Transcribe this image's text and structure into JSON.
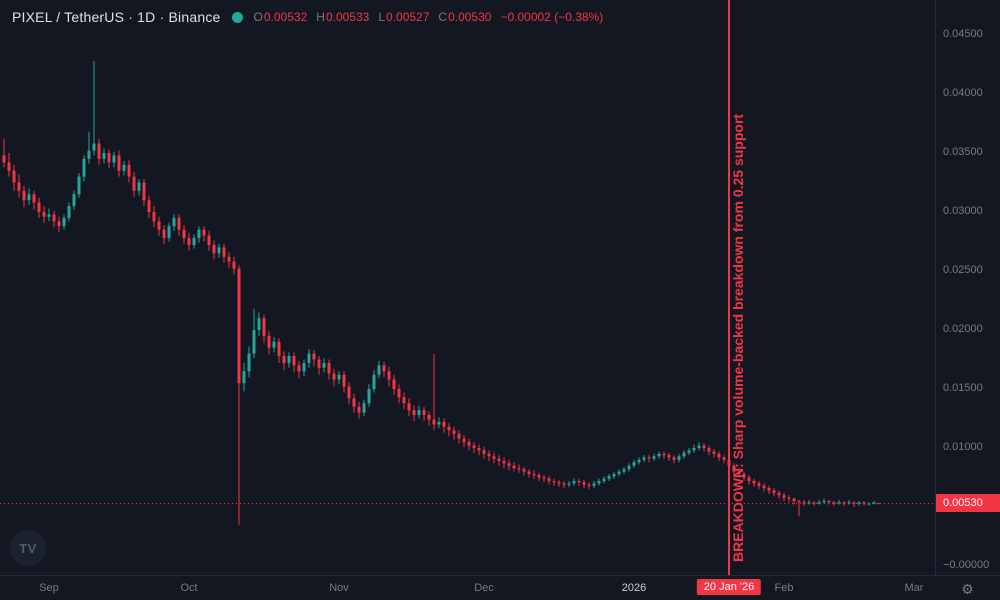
{
  "header": {
    "symbol_title": "PIXEL / TetherUS · 1D · Binance",
    "ohlc": {
      "o_label": "O",
      "o": "0.00532",
      "h_label": "H",
      "h": "0.00533",
      "l_label": "L",
      "l": "0.00527",
      "c_label": "C",
      "c": "0.00530",
      "change": "−0.00002 (−0.38%)"
    }
  },
  "colors": {
    "up": "#26a69a",
    "down": "#f23645",
    "axis_text": "#787b86",
    "background": "#121722",
    "border": "#232936",
    "title_text": "#dde1e8",
    "tag_bg": "#f23645"
  },
  "icons": {
    "gear": "⚙"
  },
  "watermark": "TV",
  "chart_data": {
    "type": "candlestick",
    "symbol": "PIXEL/TetherUS",
    "interval": "1D",
    "exchange": "Binance",
    "ylim": [
      0,
      0.0475
    ],
    "grid": "off",
    "current_price": 0.0053,
    "current_price_label": "0.00530",
    "zero_tick": {
      "text": "−0.00000",
      "price": 0
    },
    "price_ticks": [
      {
        "text": "0.04500",
        "price": 0.045
      },
      {
        "text": "0.04000",
        "price": 0.04
      },
      {
        "text": "0.03500",
        "price": 0.035
      },
      {
        "text": "0.03000",
        "price": 0.03
      },
      {
        "text": "0.02500",
        "price": 0.025
      },
      {
        "text": "0.02000",
        "price": 0.02
      },
      {
        "text": "0.01500",
        "price": 0.015
      },
      {
        "text": "0.01000",
        "price": 0.01
      }
    ],
    "time_ticks": [
      {
        "text": "Sep",
        "i": 9,
        "strong": false
      },
      {
        "text": "Oct",
        "i": 37,
        "strong": false
      },
      {
        "text": "Nov",
        "i": 67,
        "strong": false
      },
      {
        "text": "Dec",
        "i": 96,
        "strong": false
      },
      {
        "text": "2026",
        "i": 126,
        "strong": true
      },
      {
        "text": "Feb",
        "i": 156,
        "strong": false
      },
      {
        "text": "Mar",
        "i": 182,
        "strong": false
      }
    ],
    "event_line": {
      "index": 145,
      "label": "20 Jan '26",
      "annotation": "BREAKDOWN: Sharp volume-backed breakdown from 0.25 support"
    },
    "candles": [
      [
        0.0348,
        0.0362,
        0.0338,
        0.0342
      ],
      [
        0.0342,
        0.035,
        0.033,
        0.0335
      ],
      [
        0.0335,
        0.034,
        0.0318,
        0.0325
      ],
      [
        0.0325,
        0.0332,
        0.0312,
        0.0318
      ],
      [
        0.0318,
        0.0322,
        0.0304,
        0.031
      ],
      [
        0.031,
        0.032,
        0.0306,
        0.0315
      ],
      [
        0.0315,
        0.0318,
        0.0302,
        0.0308
      ],
      [
        0.0308,
        0.0312,
        0.0295,
        0.03
      ],
      [
        0.03,
        0.0305,
        0.0291,
        0.0296
      ],
      [
        0.0296,
        0.0303,
        0.0292,
        0.0298
      ],
      [
        0.0298,
        0.0301,
        0.0287,
        0.0292
      ],
      [
        0.0292,
        0.0296,
        0.0283,
        0.0288
      ],
      [
        0.0288,
        0.0298,
        0.0285,
        0.0295
      ],
      [
        0.0295,
        0.0308,
        0.0292,
        0.0305
      ],
      [
        0.0305,
        0.0318,
        0.0302,
        0.0315
      ],
      [
        0.0315,
        0.0333,
        0.0312,
        0.033
      ],
      [
        0.033,
        0.0348,
        0.0326,
        0.0345
      ],
      [
        0.0345,
        0.0368,
        0.0341,
        0.0352
      ],
      [
        0.0352,
        0.0428,
        0.0348,
        0.0358
      ],
      [
        0.0358,
        0.0362,
        0.034,
        0.0345
      ],
      [
        0.0345,
        0.0354,
        0.0341,
        0.035
      ],
      [
        0.035,
        0.0353,
        0.0337,
        0.0342
      ],
      [
        0.0342,
        0.0351,
        0.0338,
        0.0348
      ],
      [
        0.0348,
        0.0352,
        0.033,
        0.0335
      ],
      [
        0.0335,
        0.0343,
        0.0331,
        0.034
      ],
      [
        0.034,
        0.0344,
        0.0325,
        0.033
      ],
      [
        0.033,
        0.0334,
        0.0313,
        0.0318
      ],
      [
        0.0318,
        0.0328,
        0.0314,
        0.0325
      ],
      [
        0.0325,
        0.0328,
        0.0305,
        0.031
      ],
      [
        0.031,
        0.0314,
        0.0295,
        0.03
      ],
      [
        0.03,
        0.0305,
        0.0287,
        0.0292
      ],
      [
        0.0292,
        0.0296,
        0.028,
        0.0285
      ],
      [
        0.0285,
        0.0289,
        0.0273,
        0.0278
      ],
      [
        0.0278,
        0.0291,
        0.0275,
        0.0288
      ],
      [
        0.0288,
        0.0298,
        0.0284,
        0.0295
      ],
      [
        0.0295,
        0.0298,
        0.028,
        0.0285
      ],
      [
        0.0285,
        0.0289,
        0.0273,
        0.0278
      ],
      [
        0.0278,
        0.0282,
        0.0267,
        0.0272
      ],
      [
        0.0272,
        0.0281,
        0.0269,
        0.0278
      ],
      [
        0.0278,
        0.0288,
        0.0274,
        0.0285
      ],
      [
        0.0285,
        0.0288,
        0.0275,
        0.028
      ],
      [
        0.028,
        0.0284,
        0.0267,
        0.0272
      ],
      [
        0.0272,
        0.0276,
        0.026,
        0.0265
      ],
      [
        0.0265,
        0.0273,
        0.0261,
        0.027
      ],
      [
        0.027,
        0.0273,
        0.0257,
        0.0262
      ],
      [
        0.0262,
        0.0266,
        0.0253,
        0.0258
      ],
      [
        0.0258,
        0.0262,
        0.0247,
        0.0252
      ],
      [
        0.0252,
        0.0255,
        0.0035,
        0.0155
      ],
      [
        0.0155,
        0.0172,
        0.0148,
        0.0165
      ],
      [
        0.0165,
        0.0186,
        0.016,
        0.018
      ],
      [
        0.018,
        0.0218,
        0.0176,
        0.02
      ],
      [
        0.02,
        0.0215,
        0.0195,
        0.021
      ],
      [
        0.021,
        0.0213,
        0.0189,
        0.0195
      ],
      [
        0.0195,
        0.0199,
        0.0179,
        0.0185
      ],
      [
        0.0185,
        0.0194,
        0.0181,
        0.019
      ],
      [
        0.019,
        0.0193,
        0.0172,
        0.0178
      ],
      [
        0.0178,
        0.0182,
        0.0166,
        0.0172
      ],
      [
        0.0172,
        0.0181,
        0.0168,
        0.0178
      ],
      [
        0.0178,
        0.0181,
        0.0164,
        0.017
      ],
      [
        0.017,
        0.0174,
        0.0159,
        0.0165
      ],
      [
        0.0165,
        0.0175,
        0.0161,
        0.0172
      ],
      [
        0.0172,
        0.0184,
        0.0168,
        0.018
      ],
      [
        0.018,
        0.0183,
        0.0169,
        0.0175
      ],
      [
        0.0175,
        0.0178,
        0.0162,
        0.0168
      ],
      [
        0.0168,
        0.0176,
        0.0164,
        0.0172
      ],
      [
        0.0172,
        0.0175,
        0.0158,
        0.0163
      ],
      [
        0.0163,
        0.0167,
        0.0152,
        0.0158
      ],
      [
        0.0158,
        0.0165,
        0.0154,
        0.0162
      ],
      [
        0.0162,
        0.0165,
        0.0147,
        0.0152
      ],
      [
        0.0152,
        0.0156,
        0.0137,
        0.0142
      ],
      [
        0.0142,
        0.0146,
        0.013,
        0.0135
      ],
      [
        0.0135,
        0.0139,
        0.0125,
        0.013
      ],
      [
        0.013,
        0.0141,
        0.0127,
        0.0138
      ],
      [
        0.0138,
        0.0154,
        0.0135,
        0.015
      ],
      [
        0.015,
        0.0166,
        0.0147,
        0.0162
      ],
      [
        0.0162,
        0.0174,
        0.0159,
        0.017
      ],
      [
        0.017,
        0.0173,
        0.016,
        0.0165
      ],
      [
        0.0165,
        0.0169,
        0.0152,
        0.0158
      ],
      [
        0.0158,
        0.0162,
        0.0145,
        0.015
      ],
      [
        0.015,
        0.0154,
        0.0138,
        0.0143
      ],
      [
        0.0143,
        0.0147,
        0.0133,
        0.0138
      ],
      [
        0.0138,
        0.0142,
        0.0127,
        0.0132
      ],
      [
        0.0132,
        0.0136,
        0.0123,
        0.0128
      ],
      [
        0.0128,
        0.0136,
        0.0125,
        0.0132
      ],
      [
        0.0132,
        0.0135,
        0.0123,
        0.0128
      ],
      [
        0.0128,
        0.0131,
        0.0119,
        0.0124
      ],
      [
        0.0124,
        0.018,
        0.0115,
        0.012
      ],
      [
        0.012,
        0.0126,
        0.0117,
        0.0122
      ],
      [
        0.0122,
        0.0125,
        0.0113,
        0.0118
      ],
      [
        0.0118,
        0.0121,
        0.011,
        0.0115
      ],
      [
        0.0115,
        0.0118,
        0.0107,
        0.0112
      ],
      [
        0.0112,
        0.0115,
        0.0104,
        0.0108
      ],
      [
        0.0108,
        0.0111,
        0.0101,
        0.0105
      ],
      [
        0.0105,
        0.0108,
        0.0098,
        0.0102
      ],
      [
        0.0102,
        0.0105,
        0.0096,
        0.01
      ],
      [
        0.01,
        0.0103,
        0.0094,
        0.0098
      ],
      [
        0.0098,
        0.0101,
        0.0091,
        0.0095
      ],
      [
        0.0095,
        0.0098,
        0.0089,
        0.0093
      ],
      [
        0.0093,
        0.0096,
        0.0087,
        0.0091
      ],
      [
        0.0091,
        0.0094,
        0.0085,
        0.0089
      ],
      [
        0.0089,
        0.0092,
        0.0083,
        0.0087
      ],
      [
        0.0087,
        0.009,
        0.0081,
        0.0085
      ],
      [
        0.0085,
        0.0088,
        0.008,
        0.0083
      ],
      [
        0.0083,
        0.0086,
        0.0079,
        0.0082
      ],
      [
        0.0082,
        0.0084,
        0.0077,
        0.008
      ],
      [
        0.008,
        0.0082,
        0.0075,
        0.0078
      ],
      [
        0.0078,
        0.0081,
        0.0074,
        0.0077
      ],
      [
        0.0077,
        0.0079,
        0.0072,
        0.0075
      ],
      [
        0.0075,
        0.0077,
        0.0071,
        0.0074
      ],
      [
        0.0074,
        0.0076,
        0.0069,
        0.0072
      ],
      [
        0.0072,
        0.0074,
        0.0068,
        0.0071
      ],
      [
        0.0071,
        0.0073,
        0.0067,
        0.007
      ],
      [
        0.007,
        0.0072,
        0.0066,
        0.0069
      ],
      [
        0.0069,
        0.0072,
        0.0067,
        0.007
      ],
      [
        0.007,
        0.0074,
        0.0068,
        0.0072
      ],
      [
        0.0072,
        0.0074,
        0.0068,
        0.0071
      ],
      [
        0.0071,
        0.0073,
        0.0066,
        0.0069
      ],
      [
        0.0069,
        0.0071,
        0.0065,
        0.0068
      ],
      [
        0.0068,
        0.0072,
        0.0066,
        0.007
      ],
      [
        0.007,
        0.0074,
        0.0068,
        0.0072
      ],
      [
        0.0072,
        0.0076,
        0.007,
        0.0074
      ],
      [
        0.0074,
        0.0078,
        0.0072,
        0.0076
      ],
      [
        0.0076,
        0.008,
        0.0074,
        0.0078
      ],
      [
        0.0078,
        0.0082,
        0.0076,
        0.008
      ],
      [
        0.008,
        0.0084,
        0.0078,
        0.0082
      ],
      [
        0.0082,
        0.0087,
        0.008,
        0.0085
      ],
      [
        0.0085,
        0.009,
        0.0083,
        0.0088
      ],
      [
        0.0088,
        0.0092,
        0.0086,
        0.009
      ],
      [
        0.009,
        0.0094,
        0.0088,
        0.0092
      ],
      [
        0.0092,
        0.0094,
        0.0088,
        0.0091
      ],
      [
        0.0091,
        0.0095,
        0.0089,
        0.0093
      ],
      [
        0.0093,
        0.0097,
        0.0091,
        0.0095
      ],
      [
        0.0095,
        0.0097,
        0.0091,
        0.0094
      ],
      [
        0.0094,
        0.0096,
        0.0089,
        0.0092
      ],
      [
        0.0092,
        0.0094,
        0.0087,
        0.009
      ],
      [
        0.009,
        0.0095,
        0.0088,
        0.0093
      ],
      [
        0.0093,
        0.0098,
        0.0091,
        0.0096
      ],
      [
        0.0096,
        0.01,
        0.0094,
        0.0098
      ],
      [
        0.0098,
        0.0103,
        0.0096,
        0.01
      ],
      [
        0.01,
        0.0105,
        0.0098,
        0.0102
      ],
      [
        0.0102,
        0.0104,
        0.0097,
        0.01
      ],
      [
        0.01,
        0.0102,
        0.0094,
        0.0097
      ],
      [
        0.0097,
        0.0099,
        0.0092,
        0.0095
      ],
      [
        0.0095,
        0.0097,
        0.0089,
        0.0092
      ],
      [
        0.0092,
        0.0094,
        0.0087,
        0.009
      ],
      [
        0.009,
        0.0091,
        0.0082,
        0.0085
      ],
      [
        0.0085,
        0.0087,
        0.0077,
        0.008
      ],
      [
        0.008,
        0.0082,
        0.0075,
        0.0078
      ],
      [
        0.0078,
        0.008,
        0.0072,
        0.0075
      ],
      [
        0.0075,
        0.0077,
        0.0069,
        0.0072
      ],
      [
        0.0072,
        0.0074,
        0.0067,
        0.007
      ],
      [
        0.007,
        0.0072,
        0.0065,
        0.0068
      ],
      [
        0.0068,
        0.007,
        0.0063,
        0.0066
      ],
      [
        0.0066,
        0.0068,
        0.0061,
        0.0064
      ],
      [
        0.0064,
        0.0066,
        0.0059,
        0.0062
      ],
      [
        0.0062,
        0.0064,
        0.0057,
        0.006
      ],
      [
        0.006,
        0.0062,
        0.0055,
        0.0058
      ],
      [
        0.0058,
        0.006,
        0.0054,
        0.0057
      ],
      [
        0.0057,
        0.0058,
        0.0052,
        0.0055
      ],
      [
        0.0055,
        0.0056,
        0.0042,
        0.0054
      ],
      [
        0.0054,
        0.0056,
        0.0051,
        0.0053
      ],
      [
        0.0053,
        0.0056,
        0.0052,
        0.0054
      ],
      [
        0.0054,
        0.0055,
        0.0051,
        0.0053
      ],
      [
        0.0053,
        0.0056,
        0.0052,
        0.0054
      ],
      [
        0.0054,
        0.0057,
        0.0053,
        0.0055
      ],
      [
        0.0055,
        0.0056,
        0.0052,
        0.0054
      ],
      [
        0.0054,
        0.0055,
        0.0051,
        0.0053
      ],
      [
        0.0053,
        0.0056,
        0.0052,
        0.0054
      ],
      [
        0.0054,
        0.0055,
        0.0051,
        0.0053
      ],
      [
        0.0053,
        0.0056,
        0.0052,
        0.0054
      ],
      [
        0.0054,
        0.0055,
        0.005,
        0.0053
      ],
      [
        0.0053,
        0.0055,
        0.0051,
        0.0054
      ],
      [
        0.0054,
        0.0055,
        0.0051,
        0.0053
      ],
      [
        0.0053,
        0.0054,
        0.0051,
        0.0053
      ],
      [
        0.0053,
        0.0055,
        0.0052,
        0.0054
      ],
      [
        0.00532,
        0.00533,
        0.00527,
        0.0053
      ]
    ]
  }
}
